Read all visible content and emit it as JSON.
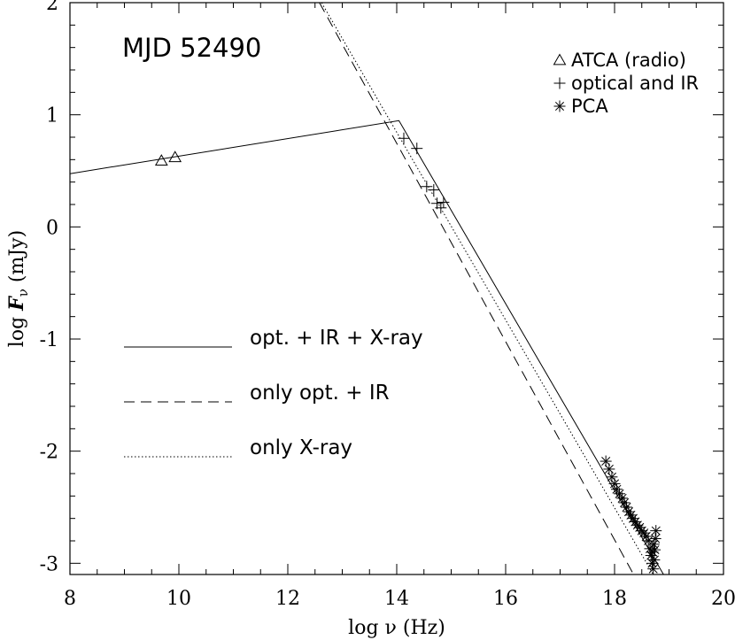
{
  "chart_data": {
    "type": "scatter",
    "annotation": "MJD 52490",
    "xlabel": "log ν (Hz)",
    "ylabel_parts": {
      "log": "log ",
      "F": "F",
      "sub": "ν",
      "unit": " (mJy)"
    },
    "xlim": [
      8,
      20
    ],
    "ylim": [
      -3.1,
      2
    ],
    "x_ticks": [
      "8",
      "10",
      "12",
      "14",
      "16",
      "18",
      "20"
    ],
    "y_ticks": [
      "2",
      "1",
      "0",
      "-1",
      "-2",
      "-3"
    ],
    "x_tick_values": [
      8,
      10,
      12,
      14,
      16,
      18,
      20
    ],
    "y_tick_values": [
      2,
      1,
      0,
      -1,
      -2,
      -3
    ],
    "legend_markers": [
      {
        "symbol": "triangle",
        "label": "ATCA (radio)"
      },
      {
        "symbol": "plus",
        "label": "optical and IR"
      },
      {
        "symbol": "asterisk",
        "label": "PCA"
      }
    ],
    "legend_lines": [
      {
        "style": "solid",
        "label": "opt. + IR + X-ray"
      },
      {
        "style": "dashed",
        "label": "only opt. + IR"
      },
      {
        "style": "dotted",
        "label": "only X-ray"
      }
    ],
    "series": [
      {
        "name": "ATCA (radio)",
        "marker": "triangle",
        "points": [
          [
            9.68,
            0.59
          ],
          [
            9.93,
            0.62
          ]
        ]
      },
      {
        "name": "optical and IR",
        "marker": "plus",
        "points": [
          [
            14.13,
            0.79
          ],
          [
            14.37,
            0.7
          ],
          [
            14.55,
            0.36
          ],
          [
            14.68,
            0.33
          ],
          [
            14.74,
            0.21
          ],
          [
            14.81,
            0.17
          ],
          [
            14.86,
            0.22
          ]
        ]
      },
      {
        "name": "PCA",
        "marker": "asterisk",
        "points": [
          [
            17.84,
            -2.09
          ],
          [
            17.9,
            -2.16
          ],
          [
            17.95,
            -2.23
          ],
          [
            18.0,
            -2.29
          ],
          [
            18.04,
            -2.34
          ],
          [
            18.09,
            -2.38
          ],
          [
            18.14,
            -2.42
          ],
          [
            18.18,
            -2.46
          ],
          [
            18.22,
            -2.5
          ],
          [
            18.26,
            -2.54
          ],
          [
            18.3,
            -2.57
          ],
          [
            18.34,
            -2.6
          ],
          [
            18.38,
            -2.63
          ],
          [
            18.42,
            -2.66
          ],
          [
            18.46,
            -2.68
          ],
          [
            18.5,
            -2.71
          ],
          [
            18.54,
            -2.73
          ],
          [
            18.58,
            -2.76
          ],
          [
            18.62,
            -2.8
          ],
          [
            18.65,
            -2.87
          ],
          [
            18.67,
            -2.93
          ],
          [
            18.69,
            -3.0
          ],
          [
            18.71,
            -3.05
          ],
          [
            18.73,
            -2.97
          ],
          [
            18.74,
            -2.88
          ],
          [
            18.75,
            -2.78
          ],
          [
            18.76,
            -2.71
          ],
          [
            18.72,
            -2.83
          ],
          [
            18.7,
            -2.9
          ]
        ]
      }
    ],
    "lines": [
      {
        "name": "opt. + IR + X-ray",
        "style": "solid",
        "points": [
          [
            8,
            0.475
          ],
          [
            14.04,
            0.948
          ],
          [
            18.9,
            -3.1
          ]
        ]
      },
      {
        "name": "only opt. + IR",
        "style": "dashed",
        "points": [
          [
            12.58,
            2.0
          ],
          [
            18.35,
            -3.1
          ]
        ]
      },
      {
        "name": "only X-ray",
        "style": "dotted",
        "points": [
          [
            12.62,
            2.0
          ],
          [
            18.71,
            -3.1
          ]
        ]
      }
    ],
    "grid": false,
    "legend_placement": "top-right (markers), center-left (lines)"
  }
}
